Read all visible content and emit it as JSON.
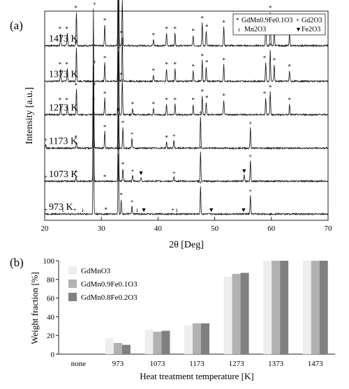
{
  "chart_data": [
    {
      "panel": "(a)",
      "type": "line",
      "xlabel": "2θ [Deg]",
      "ylabel": "Intensity [a.u.]",
      "xlim": [
        20,
        70
      ],
      "xticks": [
        20,
        30,
        40,
        50,
        60,
        70
      ],
      "legend": {
        "placement": "top-right",
        "entries": [
          {
            "symbol": "*",
            "label": "GdMn0.9Fe0.1O3"
          },
          {
            "symbol": "+",
            "label": "Gd2O3"
          },
          {
            "symbol": "ı",
            "label": "Mn2O3"
          },
          {
            "symbol": "▼",
            "label": "Fe2O3"
          }
        ]
      },
      "series": [
        {
          "name": "1473 K",
          "baseline": 0.835,
          "peaks": [
            [
              22.8,
              0.06
            ],
            [
              24.0,
              0.06
            ],
            [
              25.6,
              0.16
            ],
            [
              30.6,
              0.1
            ],
            [
              33.0,
              0.77
            ],
            [
              33.7,
              0.22
            ],
            [
              39.2,
              0.03
            ],
            [
              41.5,
              0.06
            ],
            [
              43.0,
              0.06
            ],
            [
              46.2,
              0.05
            ],
            [
              47.8,
              0.11
            ],
            [
              48.5,
              0.07
            ],
            [
              51.6,
              0.09
            ],
            [
              59.0,
              0.1
            ],
            [
              59.8,
              0.16
            ],
            [
              60.5,
              0.09
            ],
            [
              63.2,
              0.06
            ]
          ],
          "markers": [
            {
              "x": 22.7,
              "s": "*"
            },
            {
              "x": 23.9,
              "s": "*"
            },
            {
              "x": 25.5,
              "s": "*"
            },
            {
              "x": 30.6,
              "s": "*"
            },
            {
              "x": 33.5,
              "s": "*"
            },
            {
              "x": 39.2,
              "s": "*"
            },
            {
              "x": 41.5,
              "s": "*"
            },
            {
              "x": 43.0,
              "s": "*"
            },
            {
              "x": 46.2,
              "s": "*"
            },
            {
              "x": 47.8,
              "s": "*"
            },
            {
              "x": 48.6,
              "s": "*"
            },
            {
              "x": 51.6,
              "s": "*"
            },
            {
              "x": 58.8,
              "s": "*"
            },
            {
              "x": 59.8,
              "s": "*"
            },
            {
              "x": 60.5,
              "s": "*"
            },
            {
              "x": 63.2,
              "s": "*"
            }
          ]
        },
        {
          "name": "1373 K",
          "baseline": 0.665,
          "peaks": [
            [
              22.8,
              0.06
            ],
            [
              24.0,
              0.06
            ],
            [
              25.6,
              0.16
            ],
            [
              30.6,
              0.09
            ],
            [
              33.0,
              0.71
            ],
            [
              33.7,
              0.21
            ],
            [
              39.2,
              0.03
            ],
            [
              41.5,
              0.06
            ],
            [
              43.0,
              0.06
            ],
            [
              46.2,
              0.05
            ],
            [
              47.8,
              0.1
            ],
            [
              48.5,
              0.07
            ],
            [
              51.6,
              0.08
            ],
            [
              59.0,
              0.09
            ],
            [
              59.8,
              0.15
            ],
            [
              60.5,
              0.08
            ],
            [
              63.2,
              0.05
            ]
          ],
          "markers": [
            {
              "x": 22.7,
              "s": "*"
            },
            {
              "x": 23.9,
              "s": "*"
            },
            {
              "x": 25.5,
              "s": "*"
            },
            {
              "x": 30.6,
              "s": "*"
            },
            {
              "x": 33.5,
              "s": "*"
            },
            {
              "x": 39.2,
              "s": "*"
            },
            {
              "x": 41.5,
              "s": "*"
            },
            {
              "x": 43.0,
              "s": "*"
            },
            {
              "x": 46.2,
              "s": "*"
            },
            {
              "x": 47.8,
              "s": "*"
            },
            {
              "x": 48.6,
              "s": "*"
            },
            {
              "x": 51.6,
              "s": "*"
            },
            {
              "x": 58.8,
              "s": "*"
            },
            {
              "x": 59.8,
              "s": "*"
            },
            {
              "x": 60.5,
              "s": "*"
            },
            {
              "x": 63.2,
              "s": "*"
            }
          ]
        },
        {
          "name": "1273 K",
          "baseline": 0.505,
          "peaks": [
            [
              22.8,
              0.05
            ],
            [
              24.0,
              0.05
            ],
            [
              25.6,
              0.12
            ],
            [
              28.6,
              0.05
            ],
            [
              30.6,
              0.08
            ],
            [
              33.0,
              0.64
            ],
            [
              33.7,
              0.17
            ],
            [
              35.5,
              0.03
            ],
            [
              39.2,
              0.03
            ],
            [
              41.5,
              0.05
            ],
            [
              43.0,
              0.05
            ],
            [
              46.2,
              0.05
            ],
            [
              47.8,
              0.09
            ],
            [
              48.5,
              0.06
            ],
            [
              51.6,
              0.07
            ],
            [
              59.0,
              0.08
            ],
            [
              59.8,
              0.11
            ],
            [
              63.2,
              0.05
            ]
          ],
          "markers": [
            {
              "x": 22.7,
              "s": "*"
            },
            {
              "x": 23.9,
              "s": "*"
            },
            {
              "x": 25.5,
              "s": "*"
            },
            {
              "x": 28.6,
              "s": "*"
            },
            {
              "x": 30.6,
              "s": "*"
            },
            {
              "x": 33.5,
              "s": "*"
            },
            {
              "x": 35.5,
              "s": "*"
            },
            {
              "x": 39.2,
              "s": "*"
            },
            {
              "x": 41.5,
              "s": "*"
            },
            {
              "x": 43.0,
              "s": "*"
            },
            {
              "x": 46.2,
              "s": "*"
            },
            {
              "x": 47.8,
              "s": "*"
            },
            {
              "x": 48.6,
              "s": "*"
            },
            {
              "x": 51.6,
              "s": "*"
            },
            {
              "x": 58.8,
              "s": "*"
            },
            {
              "x": 59.8,
              "s": "*"
            },
            {
              "x": 63.2,
              "s": "*"
            }
          ]
        },
        {
          "name": "1173 K",
          "baseline": 0.345,
          "peaks": [
            [
              20.2,
              0.02
            ],
            [
              25.6,
              0.03
            ],
            [
              28.6,
              0.67
            ],
            [
              30.6,
              0.08
            ],
            [
              33.0,
              0.46
            ],
            [
              33.8,
              0.1
            ],
            [
              35.4,
              0.05
            ],
            [
              41.5,
              0.03
            ],
            [
              42.8,
              0.04
            ],
            [
              47.5,
              0.15
            ],
            [
              56.3,
              0.1
            ]
          ],
          "markers": [
            {
              "x": 20.2,
              "s": "+"
            },
            {
              "x": 25.5,
              "s": "*"
            },
            {
              "x": 28.8,
              "s": "+"
            },
            {
              "x": 30.6,
              "s": "*"
            },
            {
              "x": 33.1,
              "s": "+"
            },
            {
              "x": 33.8,
              "s": "*"
            },
            {
              "x": 35.4,
              "s": "+"
            },
            {
              "x": 41.5,
              "s": "*"
            },
            {
              "x": 42.8,
              "s": "+"
            },
            {
              "x": 47.5,
              "s": "+"
            },
            {
              "x": 56.3,
              "s": "+"
            }
          ]
        },
        {
          "name": "1073 K",
          "baseline": 0.187,
          "peaks": [
            [
              25.5,
              0.02
            ],
            [
              28.6,
              0.55
            ],
            [
              33.0,
              0.32
            ],
            [
              33.8,
              0.06
            ],
            [
              35.5,
              0.03
            ],
            [
              37.0,
              0.02
            ],
            [
              42.8,
              0.02
            ],
            [
              47.5,
              0.14
            ],
            [
              55.2,
              0.03
            ],
            [
              56.3,
              0.1
            ]
          ],
          "markers": [
            {
              "x": 20.2,
              "s": "+"
            },
            {
              "x": 25.5,
              "s": "*"
            },
            {
              "x": 28.8,
              "s": "+"
            },
            {
              "x": 30.6,
              "s": "*"
            },
            {
              "x": 33.0,
              "s": "+"
            },
            {
              "x": 33.0,
              "s": "*"
            },
            {
              "x": 33.8,
              "s": "*"
            },
            {
              "x": 35.5,
              "s": "+"
            },
            {
              "x": 37.0,
              "s": "▼"
            },
            {
              "x": 42.8,
              "s": "+"
            },
            {
              "x": 47.5,
              "s": "+"
            },
            {
              "x": 55.2,
              "s": "▼"
            },
            {
              "x": 56.3,
              "s": "+"
            }
          ]
        },
        {
          "name": "973 K",
          "baseline": 0.03,
          "peaks": [
            [
              28.6,
              0.6
            ],
            [
              33.0,
              0.29
            ],
            [
              33.5,
              0.07
            ],
            [
              35.4,
              0.04
            ],
            [
              47.5,
              0.13
            ],
            [
              56.3,
              0.09
            ]
          ],
          "markers": [
            {
              "x": 20.2,
              "s": "+"
            },
            {
              "x": 23.2,
              "s": "ı"
            },
            {
              "x": 25.3,
              "s": "+"
            },
            {
              "x": 26.7,
              "s": "ı"
            },
            {
              "x": 28.8,
              "s": "+"
            },
            {
              "x": 30.8,
              "s": "*"
            },
            {
              "x": 33.0,
              "s": "+"
            },
            {
              "x": 33.0,
              "s": "*"
            },
            {
              "x": 33.5,
              "s": "*"
            },
            {
              "x": 35.4,
              "s": "+"
            },
            {
              "x": 36.3,
              "s": "ı"
            },
            {
              "x": 37.5,
              "s": "▼"
            },
            {
              "x": 42.6,
              "s": "+"
            },
            {
              "x": 43.3,
              "s": "ı"
            },
            {
              "x": 47.5,
              "s": "+"
            },
            {
              "x": 49.4,
              "s": "▼"
            },
            {
              "x": 55.1,
              "s": "▼"
            },
            {
              "x": 56.3,
              "s": "+"
            }
          ]
        }
      ]
    },
    {
      "panel": "(b)",
      "type": "bar",
      "xlabel": "Heat treatment temperature [K]",
      "ylabel": "Weight fraction [%]",
      "ylim": [
        0,
        100
      ],
      "yticks": [
        0,
        20,
        40,
        60,
        80,
        100
      ],
      "legend": {
        "placement": "top-left"
      },
      "categories": [
        "none",
        "973",
        "1073",
        "1173",
        "1273",
        "1373",
        "1473"
      ],
      "series": [
        {
          "name": "GdMnO3",
          "color": "#eeeeee",
          "values": [
            0,
            17,
            26,
            31,
            83,
            100,
            100
          ]
        },
        {
          "name": "GdMn0.9Fe0.1O3",
          "color": "#b2b2b2",
          "values": [
            0,
            12,
            24,
            33,
            86,
            100,
            100
          ]
        },
        {
          "name": "GdMn0.8Fe0.2O3",
          "color": "#808080",
          "values": [
            0,
            10,
            25,
            33,
            87,
            100,
            100
          ]
        }
      ]
    }
  ]
}
